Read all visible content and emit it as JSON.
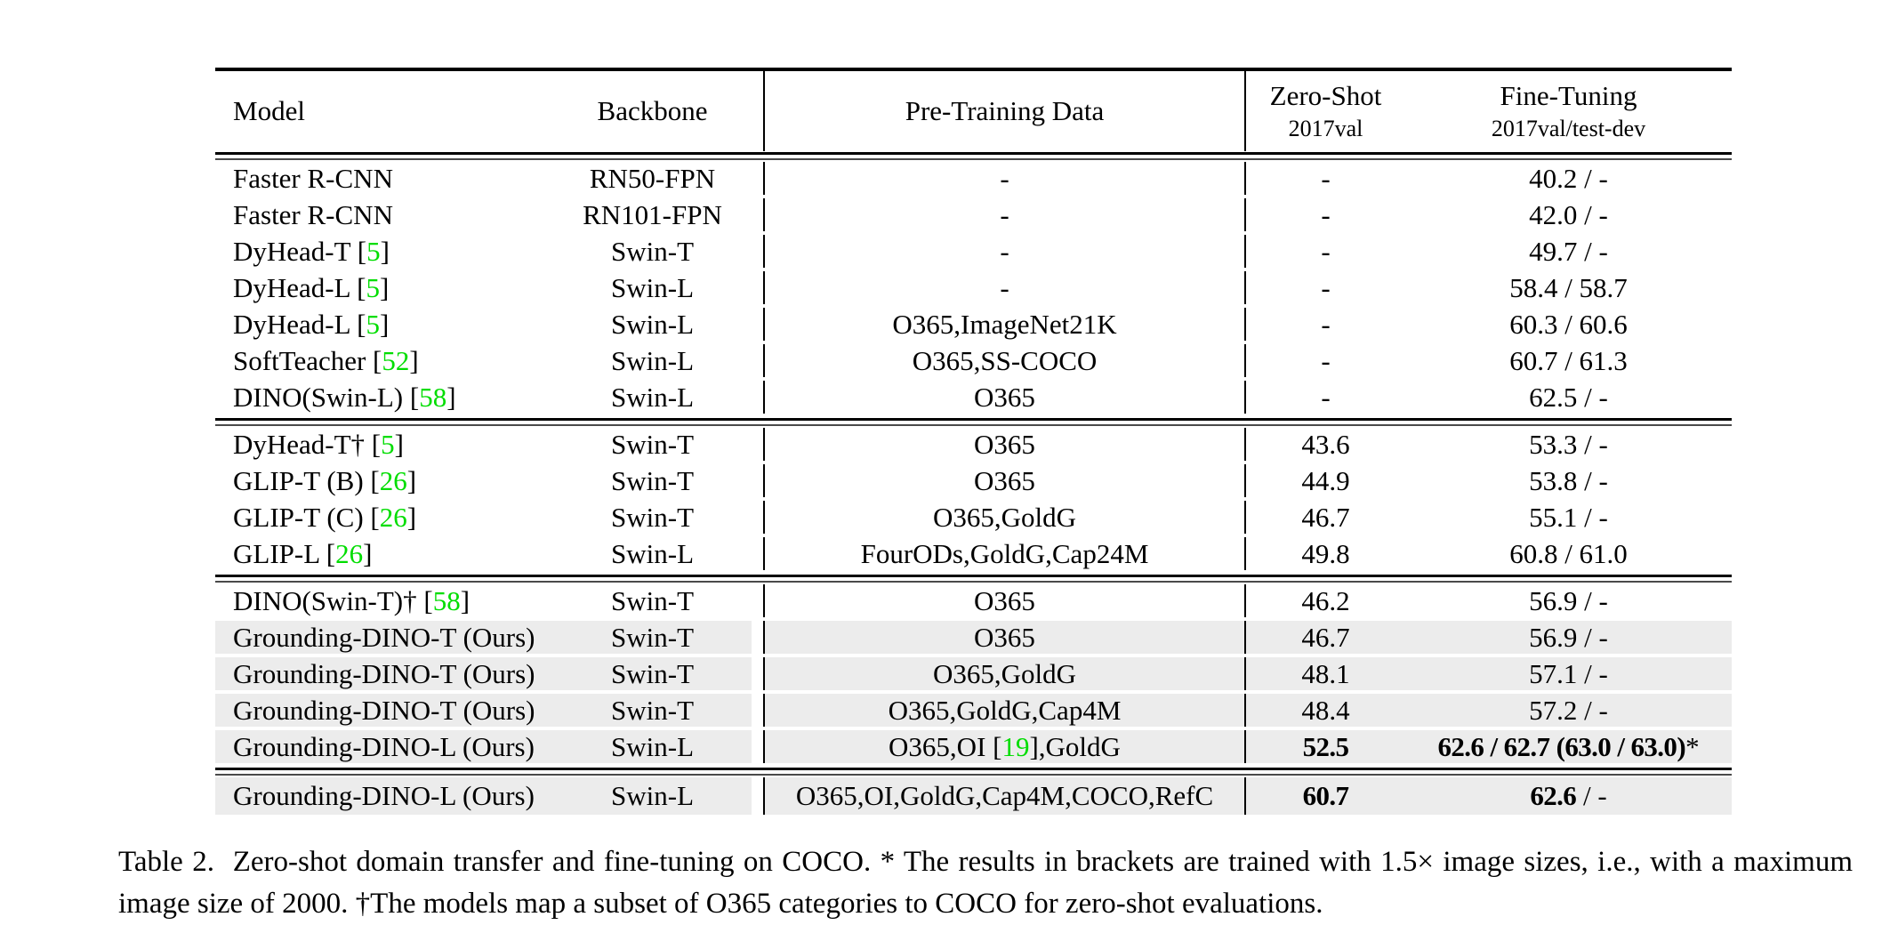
{
  "colors": {
    "citation_green": "#00dd00",
    "row_gray": "#ececec",
    "rule_black": "#000000"
  },
  "table": {
    "header": {
      "model": "Model",
      "backbone": "Backbone",
      "pretrain": "Pre-Training Data",
      "zeroshot_line1": "Zero-Shot",
      "zeroshot_line2": "2017val",
      "finetune_line1": "Fine-Tuning",
      "finetune_line2": "2017val/test-dev"
    },
    "sections": [
      {
        "rows": [
          {
            "gray": false,
            "model": [
              "Faster R-CNN"
            ],
            "backbone": "RN50-FPN",
            "pretrain": [
              "-"
            ],
            "zeroshot": [
              "-"
            ],
            "finetune": [
              "40.2 / -"
            ]
          },
          {
            "gray": false,
            "model": [
              "Faster R-CNN"
            ],
            "backbone": "RN101-FPN",
            "pretrain": [
              "-"
            ],
            "zeroshot": [
              "-"
            ],
            "finetune": [
              "42.0 / -"
            ]
          },
          {
            "gray": false,
            "model": [
              "DyHead-T [",
              {
                "text": "5",
                "green": true
              },
              "]"
            ],
            "backbone": "Swin-T",
            "pretrain": [
              "-"
            ],
            "zeroshot": [
              "-"
            ],
            "finetune": [
              "49.7 / -"
            ]
          },
          {
            "gray": false,
            "model": [
              "DyHead-L [",
              {
                "text": "5",
                "green": true
              },
              "]"
            ],
            "backbone": "Swin-L",
            "pretrain": [
              "-"
            ],
            "zeroshot": [
              "-"
            ],
            "finetune": [
              "58.4 / 58.7"
            ]
          },
          {
            "gray": false,
            "model": [
              "DyHead-L [",
              {
                "text": "5",
                "green": true
              },
              "]"
            ],
            "backbone": "Swin-L",
            "pretrain": [
              "O365,ImageNet21K"
            ],
            "zeroshot": [
              "-"
            ],
            "finetune": [
              "60.3 / 60.6"
            ]
          },
          {
            "gray": false,
            "model": [
              "SoftTeacher [",
              {
                "text": "52",
                "green": true
              },
              "]"
            ],
            "backbone": "Swin-L",
            "pretrain": [
              "O365,SS-COCO"
            ],
            "zeroshot": [
              "-"
            ],
            "finetune": [
              "60.7 / 61.3"
            ]
          },
          {
            "gray": false,
            "model": [
              "DINO(Swin-L) [",
              {
                "text": "58",
                "green": true
              },
              "]"
            ],
            "backbone": "Swin-L",
            "pretrain": [
              "O365"
            ],
            "zeroshot": [
              "-"
            ],
            "finetune": [
              "62.5 / -"
            ]
          }
        ]
      },
      {
        "rows": [
          {
            "gray": false,
            "model": [
              "DyHead-T† [",
              {
                "text": "5",
                "green": true
              },
              "]"
            ],
            "backbone": "Swin-T",
            "pretrain": [
              "O365"
            ],
            "zeroshot": [
              "43.6"
            ],
            "finetune": [
              "53.3 / -"
            ]
          },
          {
            "gray": false,
            "model": [
              "GLIP-T (B) [",
              {
                "text": "26",
                "green": true
              },
              "]"
            ],
            "backbone": "Swin-T",
            "pretrain": [
              "O365"
            ],
            "zeroshot": [
              "44.9"
            ],
            "finetune": [
              "53.8 / -"
            ]
          },
          {
            "gray": false,
            "model": [
              "GLIP-T (C) [",
              {
                "text": "26",
                "green": true
              },
              "]"
            ],
            "backbone": "Swin-T",
            "pretrain": [
              "O365,GoldG"
            ],
            "zeroshot": [
              "46.7"
            ],
            "finetune": [
              "55.1 / -"
            ]
          },
          {
            "gray": false,
            "model": [
              "GLIP-L [",
              {
                "text": "26",
                "green": true
              },
              "]"
            ],
            "backbone": "Swin-L",
            "pretrain": [
              "FourODs,GoldG,Cap24M"
            ],
            "zeroshot": [
              "49.8"
            ],
            "finetune": [
              "60.8 / 61.0"
            ]
          }
        ]
      },
      {
        "rows": [
          {
            "gray": false,
            "model": [
              "DINO(Swin-T)† [",
              {
                "text": "58",
                "green": true
              },
              "]"
            ],
            "backbone": "Swin-T",
            "pretrain": [
              "O365"
            ],
            "zeroshot": [
              "46.2"
            ],
            "finetune": [
              "56.9 / -"
            ]
          },
          {
            "gray": true,
            "model": [
              "Grounding-DINO-T (Ours)"
            ],
            "backbone": "Swin-T",
            "pretrain": [
              "O365"
            ],
            "zeroshot": [
              "46.7"
            ],
            "finetune": [
              "56.9 / -"
            ]
          },
          {
            "gray": true,
            "model": [
              "Grounding-DINO-T (Ours)"
            ],
            "backbone": "Swin-T",
            "pretrain": [
              "O365,GoldG"
            ],
            "zeroshot": [
              "48.1"
            ],
            "finetune": [
              "57.1 / -"
            ]
          },
          {
            "gray": true,
            "model": [
              "Grounding-DINO-T (Ours)"
            ],
            "backbone": "Swin-T",
            "pretrain": [
              "O365,GoldG,Cap4M"
            ],
            "zeroshot": [
              "48.4"
            ],
            "finetune": [
              "57.2 / -"
            ]
          },
          {
            "gray": true,
            "model": [
              "Grounding-DINO-L (Ours)"
            ],
            "backbone": "Swin-L",
            "pretrain": [
              "O365,OI [",
              {
                "text": "19",
                "green": true
              },
              "],GoldG"
            ],
            "zeroshot": [
              {
                "text": "52.5",
                "bold": true
              }
            ],
            "finetune": [
              {
                "text": "62.6 / 62.7 (63.0 / 63.0)",
                "bold": true
              },
              "*"
            ]
          }
        ]
      },
      {
        "rows": [
          {
            "gray": true,
            "tall": true,
            "model": [
              "Grounding-DINO-L (Ours)"
            ],
            "backbone": "Swin-L",
            "pretrain": [
              "O365,OI,GoldG,Cap4M,COCO,RefC"
            ],
            "zeroshot": [
              {
                "text": "60.7",
                "bold": true
              }
            ],
            "finetune": [
              {
                "text": "62.6",
                "bold": true
              },
              " / -"
            ]
          }
        ]
      }
    ]
  },
  "caption": "Table 2.  Zero-shot domain transfer and fine-tuning on COCO. * The results in brackets are trained with 1.5× image sizes, i.e., with a maximum image size of 2000. †The models map a subset of O365 categories to COCO for zero-shot evaluations."
}
